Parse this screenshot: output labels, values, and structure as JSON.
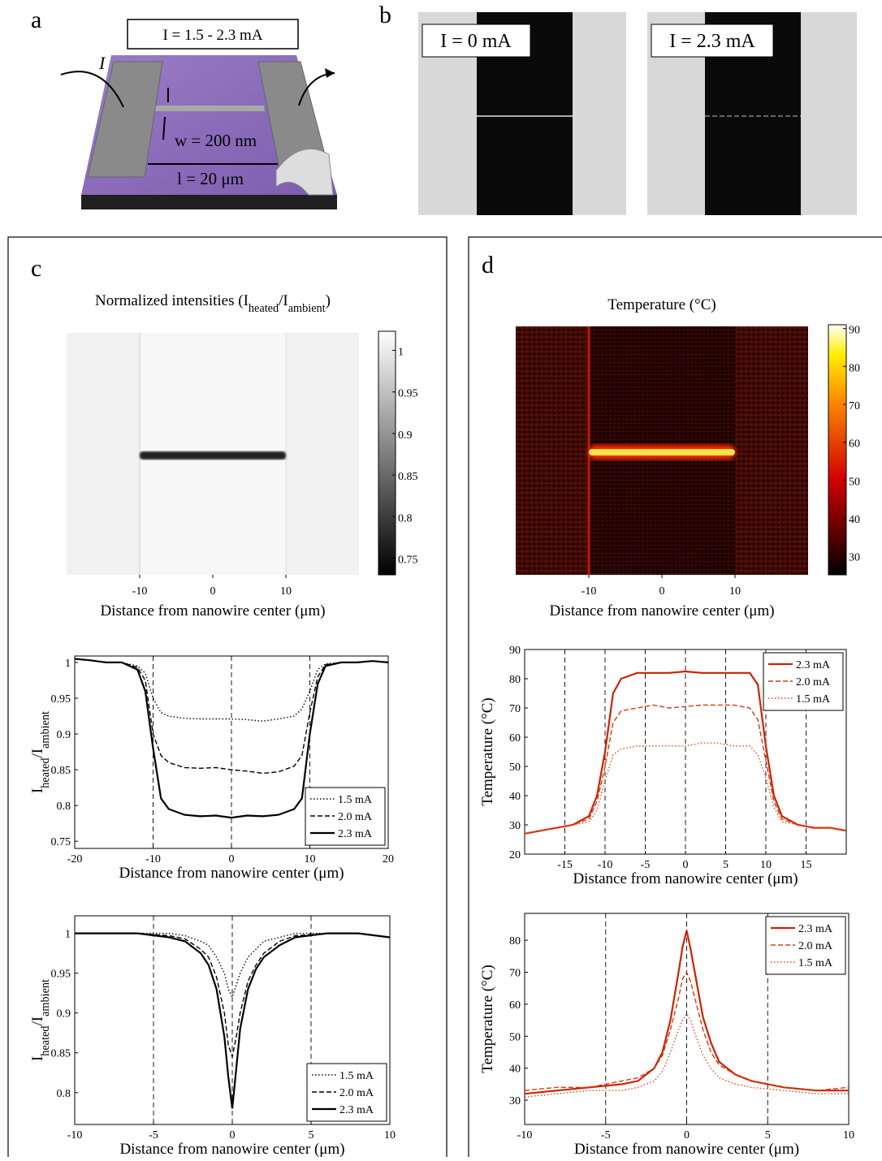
{
  "diagram": {
    "label": "a",
    "current": "I = 1.5 - 2.3 mA",
    "current_symbol": "I",
    "width": "w = 200 nm",
    "length": "l = 20 μm"
  },
  "images": {
    "label": "b",
    "captions": [
      "I = 0 mA",
      "I = 2.3 mA"
    ]
  },
  "chart_data": [
    {
      "type": "heatmap",
      "panel": "c",
      "title": [
        "Normalized intensities (I",
        "heated",
        "/I",
        "ambient",
        ")"
      ],
      "x_label": "Distance from nanowire center (μm)",
      "xlim": [
        -20,
        20
      ],
      "xticks": [
        -10,
        0,
        10
      ],
      "colormap": "gray",
      "clim": [
        0.73,
        1.023
      ],
      "cticks": [
        0.75,
        0.8,
        0.85,
        0.9,
        0.95,
        1
      ]
    },
    {
      "type": "line",
      "x_label": "Distance from nanowire center (μm)",
      "y_label": [
        "I",
        "heated",
        "/I",
        "ambient"
      ],
      "xlim": [
        -20,
        20
      ],
      "xticks": [
        -20,
        -10,
        0,
        10,
        20
      ],
      "ylim": [
        0.74,
        1.009
      ],
      "yticks": [
        0.75,
        0.8,
        0.85,
        0.9,
        0.95,
        1
      ],
      "grid": true,
      "legend": "lower right",
      "x": [
        -20,
        -18,
        -16,
        -14,
        -12,
        -11,
        -10,
        -9,
        -8,
        -6,
        -4,
        -2,
        0,
        2,
        4,
        6,
        8,
        9,
        10,
        11,
        12,
        14,
        16,
        18,
        20
      ],
      "series": [
        {
          "name": "1.5 mA",
          "color": "#000000",
          "linestyle": "dotted",
          "values": [
            1.005,
            1.003,
            1.0,
            1.0,
            0.995,
            0.985,
            0.95,
            0.93,
            0.925,
            0.922,
            0.921,
            0.921,
            0.921,
            0.92,
            0.918,
            0.921,
            0.925,
            0.935,
            0.96,
            0.99,
            0.998,
            1.0,
            1.0,
            1.002,
            1.0
          ]
        },
        {
          "name": "2.0 mA",
          "color": "#000000",
          "linestyle": "dashed",
          "values": [
            1.005,
            1.003,
            1.0,
            1.0,
            0.993,
            0.975,
            0.9,
            0.87,
            0.86,
            0.853,
            0.852,
            0.853,
            0.85,
            0.848,
            0.845,
            0.847,
            0.855,
            0.87,
            0.93,
            0.98,
            0.997,
            1.0,
            1.0,
            1.002,
            1.0
          ]
        },
        {
          "name": "2.3 mA",
          "color": "#000000",
          "linestyle": "solid",
          "values": [
            1.005,
            1.003,
            1.0,
            1.0,
            0.99,
            0.96,
            0.88,
            0.81,
            0.795,
            0.787,
            0.785,
            0.786,
            0.783,
            0.786,
            0.785,
            0.787,
            0.795,
            0.81,
            0.9,
            0.97,
            0.995,
            1.0,
            1.0,
            1.002,
            1.0
          ]
        }
      ]
    },
    {
      "type": "line",
      "x_label": "Distance from nanowire center (μm)",
      "y_label": [
        "I",
        "heated",
        "/I",
        "ambient"
      ],
      "xlim": [
        -10,
        10
      ],
      "xticks": [
        -10,
        -5,
        0,
        5,
        10
      ],
      "ylim": [
        0.76,
        1.022
      ],
      "yticks": [
        0.8,
        0.85,
        0.9,
        0.95,
        1
      ],
      "grid": true,
      "legend": "lower right",
      "x": [
        -10,
        -8,
        -6,
        -4,
        -3,
        -2,
        -1.5,
        -1,
        -0.5,
        -0.25,
        0,
        0.25,
        0.5,
        1,
        1.5,
        2,
        3,
        4,
        6,
        8,
        10
      ],
      "series": [
        {
          "name": "1.5 mA",
          "color": "#000000",
          "linestyle": "dotted",
          "values": [
            1,
            1,
            1,
            1,
            0.997,
            0.99,
            0.985,
            0.97,
            0.95,
            0.93,
            0.92,
            0.935,
            0.95,
            0.97,
            0.98,
            0.99,
            0.995,
            1,
            1,
            1,
            0.995
          ]
        },
        {
          "name": "2.0 mA",
          "color": "#000000",
          "linestyle": "dashed",
          "values": [
            1,
            1,
            1,
            0.997,
            0.993,
            0.98,
            0.97,
            0.945,
            0.9,
            0.86,
            0.845,
            0.87,
            0.9,
            0.94,
            0.96,
            0.975,
            0.99,
            0.997,
            1,
            1,
            0.995
          ]
        },
        {
          "name": "2.3 mA",
          "color": "#000000",
          "linestyle": "solid",
          "values": [
            1,
            1,
            1,
            0.995,
            0.99,
            0.975,
            0.96,
            0.93,
            0.87,
            0.82,
            0.78,
            0.83,
            0.88,
            0.93,
            0.955,
            0.97,
            0.985,
            0.995,
            1,
            1,
            0.995
          ]
        }
      ]
    },
    {
      "type": "heatmap",
      "panel": "d",
      "title": [
        "Temperature (°C)"
      ],
      "x_label": "Distance from nanowire center (μm)",
      "xlim": [
        -20,
        20
      ],
      "xticks": [
        -10,
        0,
        10
      ],
      "colormap": "hot",
      "clim": [
        25,
        91
      ],
      "cticks": [
        30,
        40,
        50,
        60,
        70,
        80,
        90
      ]
    },
    {
      "type": "line",
      "x_label": "Distance from nanowire center (μm)",
      "y_label": [
        "Temperature (°C)"
      ],
      "xlim": [
        -20,
        20
      ],
      "xticks": [
        -15,
        -10,
        -5,
        0,
        5,
        10,
        15
      ],
      "ylim": [
        20,
        90
      ],
      "yticks": [
        20,
        30,
        40,
        50,
        60,
        70,
        80,
        90
      ],
      "grid": true,
      "legend": "upper right",
      "x": [
        -20,
        -18,
        -16,
        -14,
        -12,
        -11,
        -10,
        -9,
        -8,
        -6,
        -4,
        -2,
        0,
        2,
        4,
        6,
        8,
        9,
        10,
        11,
        12,
        14,
        16,
        18,
        20
      ],
      "series": [
        {
          "name": "2.3 mA",
          "color": "#cc2200",
          "linestyle": "solid",
          "values": [
            27,
            28,
            29,
            30,
            33,
            40,
            55,
            75,
            80,
            82,
            82,
            82,
            82.5,
            82,
            82,
            82,
            82,
            78,
            57,
            40,
            33,
            30,
            29,
            29,
            28
          ]
        },
        {
          "name": "2.0 mA",
          "color": "#d83a10",
          "linestyle": "dashed",
          "values": [
            27,
            28,
            29,
            30,
            32,
            38,
            50,
            65,
            69,
            70,
            71,
            70,
            70.5,
            71,
            71,
            71,
            70,
            66,
            52,
            38,
            32,
            30,
            29,
            29,
            28
          ]
        },
        {
          "name": "1.5 mA",
          "color": "#e04a20",
          "linestyle": "dotted",
          "values": [
            27,
            28,
            29,
            30,
            31,
            35,
            45,
            54,
            56,
            57,
            57,
            57,
            57,
            58,
            58,
            57,
            57,
            54,
            46,
            36,
            31,
            30,
            29,
            29,
            28
          ]
        }
      ]
    },
    {
      "type": "line",
      "x_label": "Distance from nanowire center (μm)",
      "y_label": [
        "Temperature (°C)"
      ],
      "xlim": [
        -10,
        10
      ],
      "xticks": [
        -10,
        -5,
        0,
        5,
        10
      ],
      "ylim": [
        22.4,
        88.4
      ],
      "yticks": [
        30,
        40,
        50,
        60,
        70,
        80
      ],
      "grid": true,
      "legend": "upper right",
      "x": [
        -10,
        -8,
        -6,
        -4,
        -3,
        -2,
        -1.5,
        -1,
        -0.5,
        -0.25,
        0,
        0.25,
        0.5,
        1,
        1.5,
        2,
        3,
        4,
        6,
        8,
        10
      ],
      "series": [
        {
          "name": "2.3 mA",
          "color": "#cc2200",
          "linestyle": "solid",
          "values": [
            32,
            33,
            34,
            35,
            36,
            40,
            45,
            55,
            70,
            78,
            83,
            77,
            70,
            56,
            48,
            42,
            38,
            36,
            34,
            33,
            33
          ]
        },
        {
          "name": "2.0 mA",
          "color": "#d83a10",
          "linestyle": "dashed",
          "values": [
            33,
            34,
            34,
            36,
            37,
            40,
            44,
            52,
            62,
            68,
            70,
            67,
            62,
            52,
            45,
            41,
            38,
            36,
            34,
            33,
            34
          ]
        },
        {
          "name": "1.5 mA",
          "color": "#e04a20",
          "linestyle": "dotted",
          "values": [
            31,
            32,
            33,
            33,
            34,
            36,
            39,
            45,
            52,
            55,
            57,
            55,
            51,
            44,
            40,
            37,
            35,
            34,
            33,
            32,
            32
          ]
        }
      ]
    }
  ]
}
